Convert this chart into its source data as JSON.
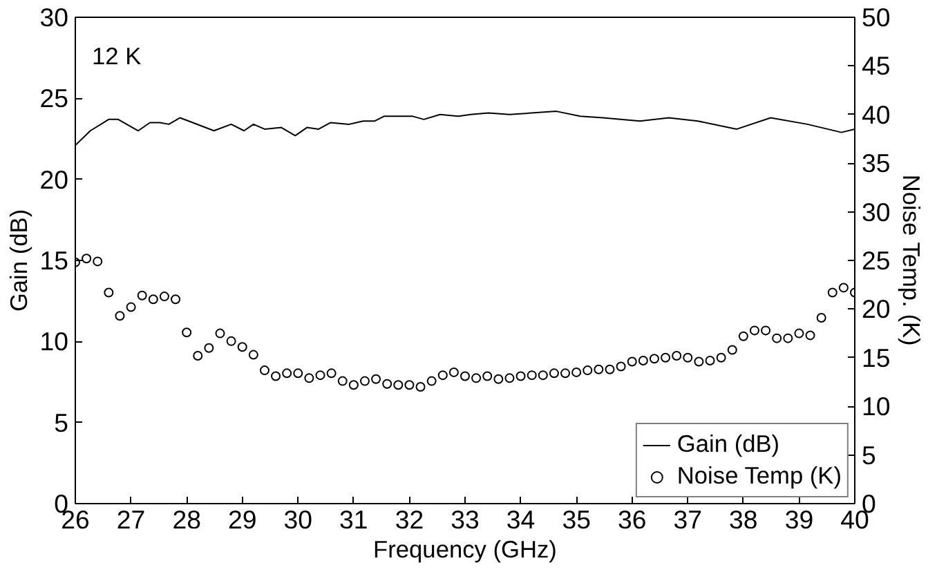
{
  "chart_data": {
    "type": "line",
    "xlabel": "Frequency (GHz)",
    "ylabel": "Gain (dB)",
    "y2label": "Noise Temp. (K)",
    "annotations": [
      "12 K"
    ],
    "xlim": [
      26,
      40
    ],
    "xticks": [
      26,
      27,
      28,
      29,
      30,
      31,
      32,
      33,
      34,
      35,
      36,
      37,
      38,
      39,
      40
    ],
    "ylim": [
      0,
      30
    ],
    "yticks": [
      0,
      5,
      10,
      15,
      20,
      25,
      30
    ],
    "y2lim": [
      0,
      50
    ],
    "y2ticks": [
      0,
      5,
      10,
      15,
      20,
      25,
      30,
      35,
      40,
      45,
      50
    ],
    "grid": false,
    "legend": "bottom right",
    "series": [
      {
        "name": "Gain (dB)",
        "color": "#000000",
        "marker": "none",
        "line_style": "solid",
        "x": [
          26.0,
          26.27,
          26.6,
          26.77,
          27.13,
          27.34,
          27.52,
          27.68,
          27.88,
          28.11,
          28.49,
          28.8,
          29.03,
          29.2,
          29.4,
          29.7,
          29.95,
          30.16,
          30.37,
          30.58,
          30.92,
          31.17,
          31.38,
          31.55,
          32.05,
          32.26,
          32.55,
          32.88,
          33.1,
          33.42,
          33.8,
          34.64,
          35.07,
          35.48,
          36.14,
          36.66,
          37.18,
          37.88,
          38.49,
          39.15,
          39.76,
          40.0
        ],
        "values": [
          22.1,
          23.0,
          23.7,
          23.7,
          23.0,
          23.5,
          23.5,
          23.4,
          23.8,
          23.5,
          23.0,
          23.4,
          23.0,
          23.4,
          23.1,
          23.2,
          22.7,
          23.2,
          23.1,
          23.5,
          23.4,
          23.6,
          23.6,
          23.9,
          23.9,
          23.7,
          24.0,
          23.9,
          24.0,
          24.1,
          24.0,
          24.2,
          23.9,
          23.8,
          23.6,
          23.8,
          23.6,
          23.1,
          23.8,
          23.4,
          22.9,
          23.1
        ]
      },
      {
        "name": "Noise Temp (K)",
        "type": "scatter",
        "axis": "y2",
        "color": "#000000",
        "marker": "circle",
        "x": [
          26.0,
          26.2,
          26.4,
          26.6,
          26.8,
          27.0,
          27.2,
          27.4,
          27.6,
          27.8,
          28.0,
          28.2,
          28.4,
          28.6,
          28.8,
          29.0,
          29.2,
          29.4,
          29.6,
          29.8,
          30.0,
          30.2,
          30.4,
          30.6,
          30.8,
          31.0,
          31.2,
          31.4,
          31.6,
          31.8,
          32.0,
          32.2,
          32.4,
          32.6,
          32.8,
          33.0,
          33.2,
          33.4,
          33.6,
          33.8,
          34.0,
          34.2,
          34.4,
          34.6,
          34.8,
          35.0,
          35.2,
          35.4,
          35.6,
          35.8,
          36.0,
          36.2,
          36.4,
          36.6,
          36.8,
          37.0,
          37.2,
          37.4,
          37.6,
          37.8,
          38.0,
          38.2,
          38.4,
          38.6,
          38.8,
          39.0,
          39.2,
          39.4,
          39.6,
          39.8,
          40.0
        ],
        "values": [
          24.8,
          25.2,
          24.9,
          21.7,
          19.3,
          20.2,
          21.4,
          21.0,
          21.3,
          21.0,
          17.6,
          15.2,
          16.0,
          17.5,
          16.7,
          16.1,
          15.3,
          13.7,
          13.1,
          13.4,
          13.4,
          12.9,
          13.2,
          13.4,
          12.6,
          12.2,
          12.6,
          12.8,
          12.3,
          12.2,
          12.2,
          12.0,
          12.6,
          13.2,
          13.5,
          13.1,
          12.9,
          13.1,
          12.8,
          12.9,
          13.1,
          13.2,
          13.2,
          13.4,
          13.4,
          13.5,
          13.7,
          13.8,
          13.8,
          14.1,
          14.6,
          14.7,
          14.9,
          15.0,
          15.2,
          15.0,
          14.6,
          14.7,
          15.0,
          15.8,
          17.2,
          17.8,
          17.8,
          17.0,
          17.0,
          17.5,
          17.3,
          19.1,
          21.7,
          22.2,
          21.7
        ]
      }
    ]
  }
}
